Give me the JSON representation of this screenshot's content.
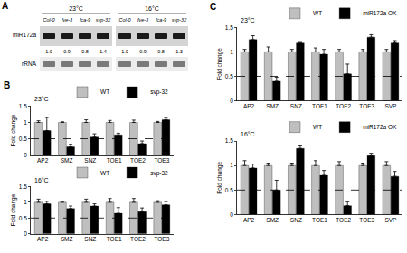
{
  "blot": {
    "panel": "A",
    "rows": [
      "miR172a",
      "rRNA"
    ],
    "groups": [
      {
        "title": "23°C",
        "lanes": [
          "Col-0",
          "fve-3",
          "fca-9",
          "svp-32"
        ],
        "quantification": [
          "1.0",
          "0.9",
          "0.8",
          "1.4"
        ]
      },
      {
        "title": "16°C",
        "lanes": [
          "Col-0",
          "fve-3",
          "fca-9",
          "svp-32"
        ],
        "quantification": [
          "1.0",
          "0.9",
          "0.8",
          "1.3"
        ]
      }
    ]
  },
  "chart_data": [
    {
      "type": "bar",
      "panel": "B",
      "title": "23°C",
      "ylabel": "Fold change",
      "categories": [
        "AP2",
        "SMZ",
        "SNZ",
        "TOE1",
        "TOE2",
        "TOE3"
      ],
      "series": [
        {
          "name": "WT",
          "color": "#bfbfbf",
          "values": [
            1,
            1,
            1,
            1,
            1,
            1
          ],
          "errors": [
            0.05,
            0.02,
            0.08,
            0.06,
            0.07,
            0.03
          ]
        },
        {
          "name": "svp-32",
          "color": "#000000",
          "values": [
            0.75,
            0.25,
            0.55,
            0.62,
            0.35,
            1.08
          ],
          "errors": [
            0.4,
            0.08,
            0.1,
            0.05,
            0.08,
            0.05
          ]
        }
      ],
      "ylim": [
        0,
        1.5
      ],
      "yticks": [
        0,
        0.5,
        1,
        1.5
      ],
      "legend": "upper right",
      "reference_line": {
        "value": 0.5,
        "line_style": "dashed"
      }
    },
    {
      "type": "bar",
      "title": "16°C",
      "ylabel": "Fold change",
      "categories": [
        "AP2",
        "SMZ",
        "SNZ",
        "TOE1",
        "TOE2",
        "TOE3"
      ],
      "series": [
        {
          "name": "WT",
          "color": "#bfbfbf",
          "values": [
            1,
            1,
            1,
            1,
            1,
            1
          ],
          "errors": [
            0.1,
            0.03,
            0.1,
            0.12,
            0.12,
            0.05
          ]
        },
        {
          "name": "svp-32",
          "color": "#000000",
          "values": [
            0.95,
            0.8,
            0.88,
            0.65,
            0.7,
            0.92
          ],
          "errors": [
            0.08,
            0.08,
            0.07,
            0.18,
            0.12,
            0.1
          ]
        }
      ],
      "ylim": [
        0,
        1.5
      ],
      "yticks": [
        0,
        0.5,
        1,
        1.5
      ],
      "legend": "upper right",
      "reference_line": {
        "value": 0.5,
        "line_style": "dashed"
      }
    },
    {
      "type": "bar",
      "panel": "C",
      "title": "23°C",
      "ylabel": "Fold change",
      "categories": [
        "AP2",
        "SMZ",
        "SNZ",
        "TOE1",
        "TOE2",
        "TOE3",
        "SVP"
      ],
      "series": [
        {
          "name": "WT",
          "color": "#bfbfbf",
          "values": [
            1,
            1,
            1,
            1,
            1,
            1,
            1
          ],
          "errors": [
            0.05,
            0.1,
            0.05,
            0.08,
            0.05,
            0.05,
            0.05
          ]
        },
        {
          "name": "miR172a OX",
          "color": "#000000",
          "values": [
            1.25,
            0.4,
            1.18,
            0.95,
            0.55,
            1.3,
            1.18
          ],
          "errors": [
            0.08,
            0.08,
            0.03,
            0.1,
            0.2,
            0.05,
            0.05
          ]
        }
      ],
      "ylim": [
        0,
        1.5
      ],
      "yticks": [
        0,
        0.5,
        1,
        1.5
      ],
      "legend": "upper right",
      "reference_line": {
        "value": 0.5,
        "line_style": "dashed"
      }
    },
    {
      "type": "bar",
      "title": "16°C",
      "ylabel": "Fold change",
      "categories": [
        "AP2",
        "SMZ",
        "SNZ",
        "TOE1",
        "TOE2",
        "TOE3",
        "SVP"
      ],
      "series": [
        {
          "name": "WT",
          "color": "#bfbfbf",
          "values": [
            1,
            1,
            1,
            1,
            1,
            1,
            1
          ],
          "errors": [
            0.1,
            0.05,
            0.05,
            0.1,
            0.08,
            0.05,
            0.08
          ]
        },
        {
          "name": "miR172a OX",
          "color": "#000000",
          "values": [
            0.95,
            0.5,
            1.35,
            0.8,
            0.18,
            1.2,
            0.78
          ],
          "errors": [
            0.08,
            0.2,
            0.05,
            0.1,
            0.08,
            0.05,
            0.1
          ]
        }
      ],
      "ylim": [
        0,
        1.5
      ],
      "yticks": [
        0,
        0.5,
        1,
        1.5
      ],
      "legend": "upper right",
      "reference_line": {
        "value": 0.5,
        "line_style": "dashed"
      }
    }
  ]
}
